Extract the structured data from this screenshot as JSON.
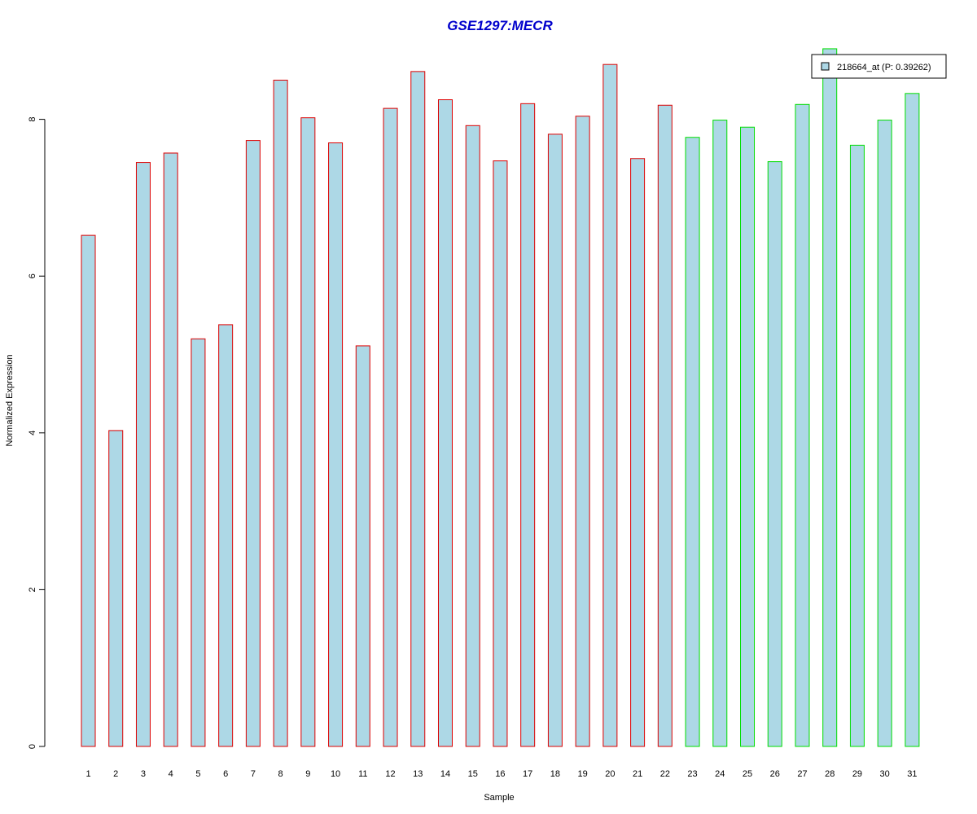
{
  "chart_data": {
    "type": "bar",
    "title": "GSE1297:MECR",
    "xlabel": "Sample",
    "ylabel": "Normalized Expression",
    "ylim": [
      0,
      9
    ],
    "yticks": [
      0,
      2,
      4,
      6,
      8
    ],
    "categories": [
      "1",
      "2",
      "3",
      "4",
      "5",
      "6",
      "7",
      "8",
      "9",
      "10",
      "11",
      "12",
      "13",
      "14",
      "15",
      "16",
      "17",
      "18",
      "19",
      "20",
      "21",
      "22",
      "23",
      "24",
      "25",
      "26",
      "27",
      "28",
      "29",
      "30",
      "31"
    ],
    "series": [
      {
        "name": "218664_at (P: 0.39262)",
        "values": [
          6.52,
          4.03,
          7.45,
          7.57,
          5.2,
          5.38,
          7.73,
          8.5,
          8.02,
          7.7,
          5.11,
          8.14,
          8.61,
          8.25,
          7.92,
          7.47,
          8.2,
          7.81,
          8.04,
          8.7,
          7.5,
          8.18,
          7.77,
          7.99,
          7.9,
          7.46,
          8.19,
          8.9,
          7.67,
          7.99,
          8.33
        ]
      }
    ],
    "groups": [
      {
        "from": 1,
        "to": 22,
        "border_color": "#dd0000"
      },
      {
        "from": 23,
        "to": 31,
        "border_color": "#00dd00"
      }
    ],
    "bar_fill": "#add8e6",
    "title_color": "#0000cc",
    "grid": false,
    "legend": {
      "position": "top-right",
      "label": "218664_at (P: 0.39262)"
    }
  }
}
